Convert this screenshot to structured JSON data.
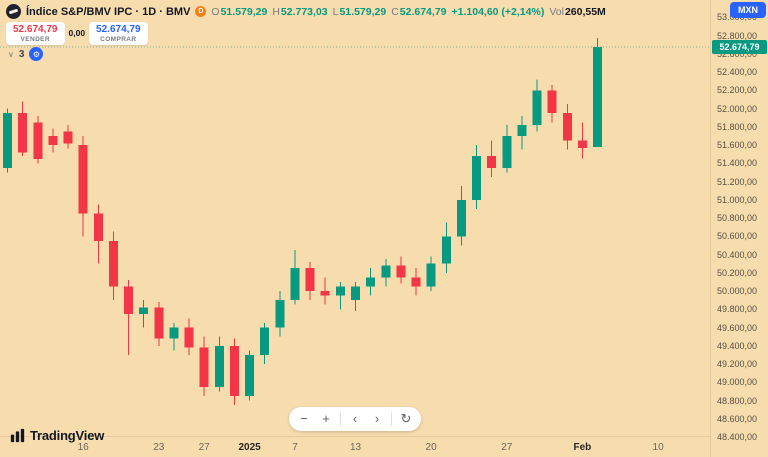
{
  "app": {
    "brand": "TradingView"
  },
  "header": {
    "symbol_title": "Índice S&P/BMV IPC · 1D · BMV",
    "delayed_badge": "D",
    "ohlc_labels": {
      "o": "O",
      "h": "H",
      "l": "L",
      "c": "C"
    },
    "ohlc_values": {
      "o": "51.579,29",
      "h": "52.773,03",
      "l": "51.579,29",
      "c": "52.674,79"
    },
    "change": "+1.104,60 (+2,14%)",
    "volume_label": "Vol",
    "volume_value": "260,55M",
    "currency_button": "MXN"
  },
  "trade_panel": {
    "sell_label": "VENDER",
    "sell_price": "52.674,79",
    "spread": "0,00",
    "buy_label": "COMPRAR",
    "buy_price": "52.674,79"
  },
  "indicators_row": {
    "chevron": "∨",
    "count": "3",
    "settings_glyph": "⚙"
  },
  "nav_toolbar": {
    "zoom_out": "−",
    "zoom_in": "+",
    "pan_left": "‹",
    "pan_right": "›",
    "reset": "↻"
  },
  "colors": {
    "up": "#089981",
    "down": "#f23645",
    "accent_blue": "#2962ff",
    "background": "#f7dcae"
  },
  "chart_data": {
    "type": "candlestick",
    "symbol": "Índice S&P/BMV IPC",
    "timeframe": "1D",
    "exchange": "BMV",
    "currency": "MXN",
    "colors": {
      "up": "#089981",
      "down": "#f23645"
    },
    "total_slots": 47,
    "current_price": 52674.79,
    "current_price_label": "52.674,79",
    "y_axis": {
      "price_top": 53190,
      "price_bottom": 48400,
      "tick_prices": [
        53000,
        52800,
        52600,
        52400,
        52200,
        52000,
        51800,
        51600,
        51400,
        51200,
        51000,
        50800,
        50600,
        50400,
        50200,
        50000,
        49800,
        49600,
        49400,
        49200,
        49000,
        48800,
        48600,
        48400
      ],
      "tick_labels": [
        "53.000,00",
        "52.800,00",
        "52.600,00",
        "52.400,00",
        "52.200,00",
        "52.000,00",
        "51.800,00",
        "51.600,00",
        "51.400,00",
        "51.200,00",
        "51.000,00",
        "50.800,00",
        "50.600,00",
        "50.400,00",
        "50.200,00",
        "50.000,00",
        "49.800,00",
        "49.600,00",
        "49.400,00",
        "49.200,00",
        "49.000,00",
        "48.800,00",
        "48.600,00",
        "48.400,00"
      ]
    },
    "x_labels": [
      {
        "text": "16",
        "slot": 5,
        "emph": false
      },
      {
        "text": "23",
        "slot": 10,
        "emph": false
      },
      {
        "text": "27",
        "slot": 13,
        "emph": false
      },
      {
        "text": "2025",
        "slot": 16,
        "emph": true
      },
      {
        "text": "7",
        "slot": 19,
        "emph": false
      },
      {
        "text": "13",
        "slot": 23,
        "emph": false
      },
      {
        "text": "20",
        "slot": 28,
        "emph": false
      },
      {
        "text": "27",
        "slot": 33,
        "emph": false
      },
      {
        "text": "Feb",
        "slot": 38,
        "emph": true
      },
      {
        "text": "10",
        "slot": 43,
        "emph": false
      }
    ],
    "columns": [
      "date",
      "open",
      "high",
      "low",
      "close"
    ],
    "candles": [
      [
        "2024-12-09",
        51350,
        52000,
        51300,
        51950
      ],
      [
        "2024-12-10",
        51950,
        52080,
        51480,
        51520
      ],
      [
        "2024-12-11",
        51850,
        51920,
        51400,
        51450
      ],
      [
        "2024-12-12",
        51700,
        51780,
        51520,
        51600
      ],
      [
        "2024-12-13",
        51750,
        51820,
        51560,
        51620
      ],
      [
        "2024-12-16",
        51600,
        51700,
        50600,
        50850
      ],
      [
        "2024-12-17",
        50850,
        50950,
        50300,
        50550
      ],
      [
        "2024-12-18",
        50550,
        50650,
        49900,
        50050
      ],
      [
        "2024-12-19",
        50050,
        50120,
        49300,
        49750
      ],
      [
        "2024-12-20",
        49750,
        49900,
        49600,
        49820
      ],
      [
        "2024-12-23",
        49820,
        49880,
        49400,
        49480
      ],
      [
        "2024-12-24",
        49480,
        49650,
        49350,
        49600
      ],
      [
        "2024-12-26",
        49600,
        49700,
        49300,
        49380
      ],
      [
        "2024-12-27",
        49380,
        49500,
        48850,
        48950
      ],
      [
        "2024-12-30",
        48950,
        49500,
        48900,
        49400
      ],
      [
        "2024-12-31",
        49400,
        49480,
        48750,
        48850
      ],
      [
        "2025-01-02",
        48850,
        49350,
        48800,
        49300
      ],
      [
        "2025-01-03",
        49300,
        49650,
        49200,
        49600
      ],
      [
        "2025-01-06",
        49600,
        50000,
        49500,
        49900
      ],
      [
        "2025-01-07",
        49900,
        50450,
        49850,
        50250
      ],
      [
        "2025-01-08",
        50250,
        50320,
        49900,
        50000
      ],
      [
        "2025-01-09",
        50000,
        50150,
        49850,
        49950
      ],
      [
        "2025-01-10",
        49950,
        50100,
        49800,
        50050
      ],
      [
        "2025-01-13",
        49900,
        50100,
        49780,
        50050
      ],
      [
        "2025-01-14",
        50050,
        50250,
        49950,
        50150
      ],
      [
        "2025-01-15",
        50150,
        50350,
        50050,
        50280
      ],
      [
        "2025-01-16",
        50280,
        50380,
        50080,
        50150
      ],
      [
        "2025-01-17",
        50150,
        50250,
        49950,
        50050
      ],
      [
        "2025-01-20",
        50050,
        50380,
        50000,
        50300
      ],
      [
        "2025-01-21",
        50300,
        50750,
        50200,
        50600
      ],
      [
        "2025-01-22",
        50600,
        51150,
        50500,
        51000
      ],
      [
        "2025-01-23",
        51000,
        51600,
        50900,
        51480
      ],
      [
        "2025-01-24",
        51480,
        51650,
        51250,
        51350
      ],
      [
        "2025-01-27",
        51350,
        51820,
        51300,
        51700
      ],
      [
        "2025-01-28",
        51700,
        51920,
        51550,
        51820
      ],
      [
        "2025-01-29",
        51820,
        52320,
        51750,
        52200
      ],
      [
        "2025-01-30",
        52200,
        52260,
        51850,
        51950
      ],
      [
        "2025-01-31",
        51950,
        52050,
        51550,
        51650
      ],
      [
        "2025-02-03",
        51650,
        51850,
        51450,
        51570.19
      ],
      [
        "2025-02-04",
        51579.29,
        52773.03,
        51579.29,
        52674.79
      ]
    ]
  }
}
